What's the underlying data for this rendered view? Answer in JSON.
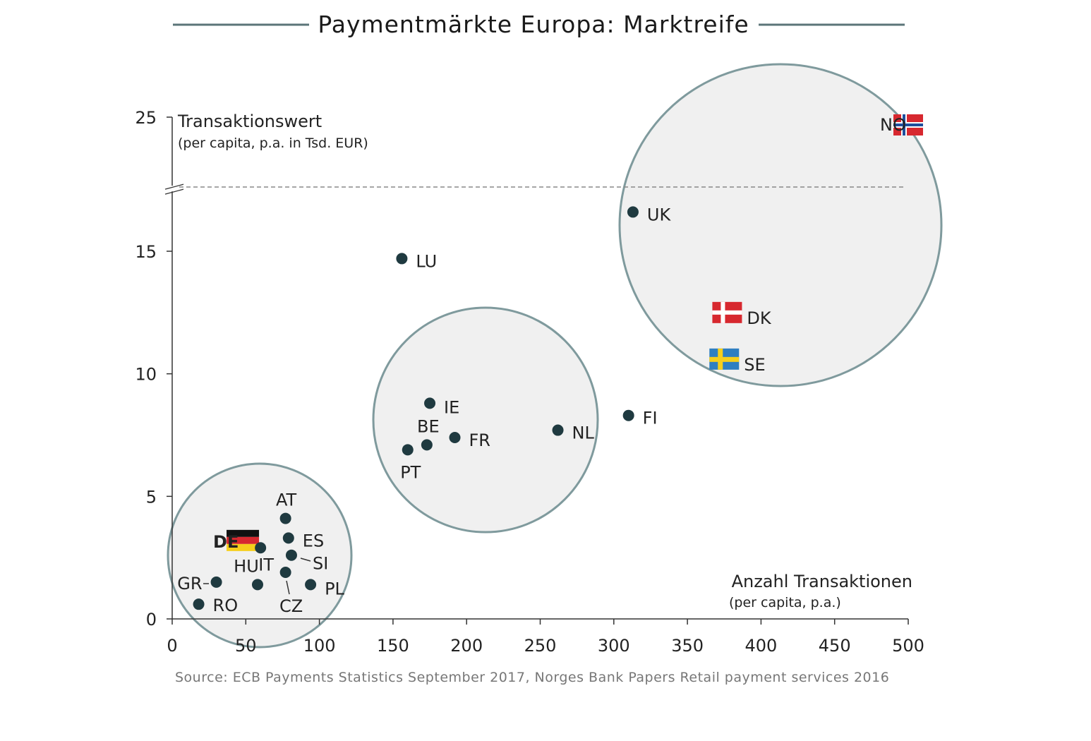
{
  "title": "Paymentmärkte Europa: Marktreife",
  "source": "Source: ECB Payments Statistics September 2017, Norges Bank Papers Retail payment services 2016",
  "colors": {
    "title_rule": "#5b7578",
    "axis": "#333333",
    "point": "#1f3a40",
    "cluster_fill": "#f0f0f0",
    "cluster_stroke": "#7f9a9d",
    "dashed": "#888888"
  },
  "chart_data": {
    "type": "scatter",
    "title": "Paymentmärkte Europa: Marktreife",
    "xlabel": "Anzahl Transaktionen",
    "xlabel_sub": "(per capita, p.a.)",
    "ylabel": "Transaktionswert",
    "ylabel_sub": "(per capita, p.a. in Tsd. EUR)",
    "xlim": [
      0,
      500
    ],
    "ylim": [
      0,
      25
    ],
    "x_ticks": [
      "0",
      "50",
      "100",
      "150",
      "200",
      "250",
      "300",
      "350",
      "400",
      "450",
      "500"
    ],
    "y_ticks": [
      "0",
      "5",
      "10",
      "15",
      "25"
    ],
    "y_axis_break": "between 15 and 25",
    "grid": false,
    "points": [
      {
        "label": "NO",
        "x": 500,
        "y": 24.2,
        "marker": "flag-norway"
      },
      {
        "label": "UK",
        "x": 313,
        "y": 16.6,
        "marker": "dot"
      },
      {
        "label": "LU",
        "x": 156,
        "y": 14.7,
        "marker": "dot"
      },
      {
        "label": "DK",
        "x": 377,
        "y": 12.5,
        "marker": "flag-denmark"
      },
      {
        "label": "SE",
        "x": 375,
        "y": 10.6,
        "marker": "flag-sweden"
      },
      {
        "label": "FI",
        "x": 310,
        "y": 8.3,
        "marker": "dot"
      },
      {
        "label": "IE",
        "x": 175,
        "y": 8.8,
        "marker": "dot"
      },
      {
        "label": "NL",
        "x": 262,
        "y": 7.7,
        "marker": "dot"
      },
      {
        "label": "FR",
        "x": 192,
        "y": 7.4,
        "marker": "dot"
      },
      {
        "label": "BE",
        "x": 173,
        "y": 7.1,
        "marker": "dot"
      },
      {
        "label": "PT",
        "x": 160,
        "y": 6.9,
        "marker": "dot"
      },
      {
        "label": "AT",
        "x": 77,
        "y": 4.1,
        "marker": "dot"
      },
      {
        "label": "DE",
        "x": 47,
        "y": 3.2,
        "marker": "flag-germany"
      },
      {
        "label": "ES",
        "x": 79,
        "y": 3.3,
        "marker": "dot"
      },
      {
        "label": "IT",
        "x": 60,
        "y": 2.9,
        "marker": "dot"
      },
      {
        "label": "SI",
        "x": 81,
        "y": 2.6,
        "marker": "dot"
      },
      {
        "label": "HU",
        "x": 58,
        "y": 1.4,
        "marker": "dot"
      },
      {
        "label": "CZ",
        "x": 77,
        "y": 1.9,
        "marker": "dot"
      },
      {
        "label": "GR",
        "x": 30,
        "y": 1.5,
        "marker": "dot"
      },
      {
        "label": "PL",
        "x": 94,
        "y": 1.4,
        "marker": "dot"
      },
      {
        "label": "RO",
        "x": 18,
        "y": 0.6,
        "marker": "dot"
      }
    ]
  }
}
